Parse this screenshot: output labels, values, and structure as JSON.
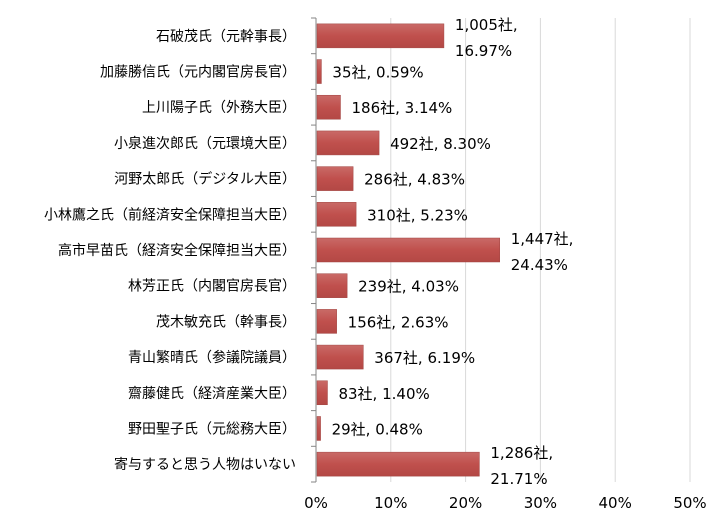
{
  "chart_data": {
    "type": "bar",
    "orientation": "horizontal",
    "categories": [
      "石破茂氏（元幹事長）",
      "加藤勝信氏（元内閣官房長官）",
      "上川陽子氏（外務大臣）",
      "小泉進次郎氏（元環境大臣）",
      "河野太郎氏（デジタル大臣）",
      "小林鷹之氏（前経済安全保障担当大臣）",
      "高市早苗氏（経済安全保障担当大臣）",
      "林芳正氏（内閣官房長官）",
      "茂木敏充氏（幹事長）",
      "青山繁晴氏（参議院議員）",
      "齋藤健氏（経済産業大臣）",
      "野田聖子氏（元総務大臣）",
      "寄与すると思う人物はいない"
    ],
    "values": [
      16.97,
      0.59,
      3.14,
      8.3,
      4.83,
      5.23,
      24.43,
      4.03,
      2.63,
      6.19,
      1.4,
      0.48,
      21.71
    ],
    "data_labels": [
      [
        "1,005社,",
        "16.97%"
      ],
      [
        "35社, 0.59%"
      ],
      [
        "186社, 3.14%"
      ],
      [
        "492社, 8.30%"
      ],
      [
        "286社, 4.83%"
      ],
      [
        "310社, 5.23%"
      ],
      [
        "1,447社,",
        "24.43%"
      ],
      [
        "239社, 4.03%"
      ],
      [
        "156社, 2.63%"
      ],
      [
        "367社, 6.19%"
      ],
      [
        "83社, 1.40%"
      ],
      [
        "29社, 0.48%"
      ],
      [
        "1,286社,",
        "21.71%"
      ]
    ],
    "xlim": [
      0,
      50
    ],
    "x_ticks": [
      "0%",
      "10%",
      "20%",
      "30%",
      "40%",
      "50%"
    ],
    "grid": "vertical",
    "bar_color": "#c0504d",
    "title": "",
    "xlabel": "",
    "ylabel": ""
  }
}
